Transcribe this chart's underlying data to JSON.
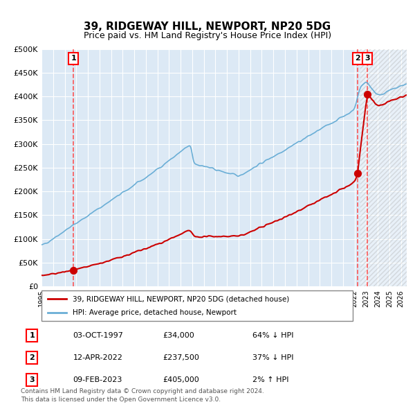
{
  "title": "39, RIDGEWAY HILL, NEWPORT, NP20 5DG",
  "subtitle": "Price paid vs. HM Land Registry's House Price Index (HPI)",
  "sales": [
    {
      "date_num": 1997.75,
      "price": 34000,
      "label": "1"
    },
    {
      "date_num": 2022.28,
      "price": 237500,
      "label": "2"
    },
    {
      "date_num": 2023.11,
      "price": 405000,
      "label": "3"
    }
  ],
  "hpi_color": "#6aaed6",
  "price_color": "#cc0000",
  "vline_color": "#ff4444",
  "background_color": "#dce9f5",
  "plot_bg_color": "#dce9f5",
  "hatch_color": "#b0c4d8",
  "legend_entries": [
    "39, RIDGEWAY HILL, NEWPORT, NP20 5DG (detached house)",
    "HPI: Average price, detached house, Newport"
  ],
  "table_rows": [
    {
      "num": "1",
      "date": "03-OCT-1997",
      "price": "£34,000",
      "hpi": "64% ↓ HPI"
    },
    {
      "num": "2",
      "date": "12-APR-2022",
      "price": "£237,500",
      "hpi": "37% ↓ HPI"
    },
    {
      "num": "3",
      "date": "09-FEB-2023",
      "price": "£405,000",
      "hpi": "2% ↑ HPI"
    }
  ],
  "footer": "Contains HM Land Registry data © Crown copyright and database right 2024.\nThis data is licensed under the Open Government Licence v3.0.",
  "ylim": [
    0,
    500000
  ],
  "xlim_start": 1995.0,
  "xlim_end": 2026.5,
  "yticks": [
    0,
    50000,
    100000,
    150000,
    200000,
    250000,
    300000,
    350000,
    400000,
    450000,
    500000
  ],
  "xticks": [
    1995,
    1996,
    1997,
    1998,
    1999,
    2000,
    2001,
    2002,
    2003,
    2004,
    2005,
    2006,
    2007,
    2008,
    2009,
    2010,
    2011,
    2012,
    2013,
    2014,
    2015,
    2016,
    2017,
    2018,
    2019,
    2020,
    2021,
    2022,
    2023,
    2024,
    2025,
    2026
  ]
}
